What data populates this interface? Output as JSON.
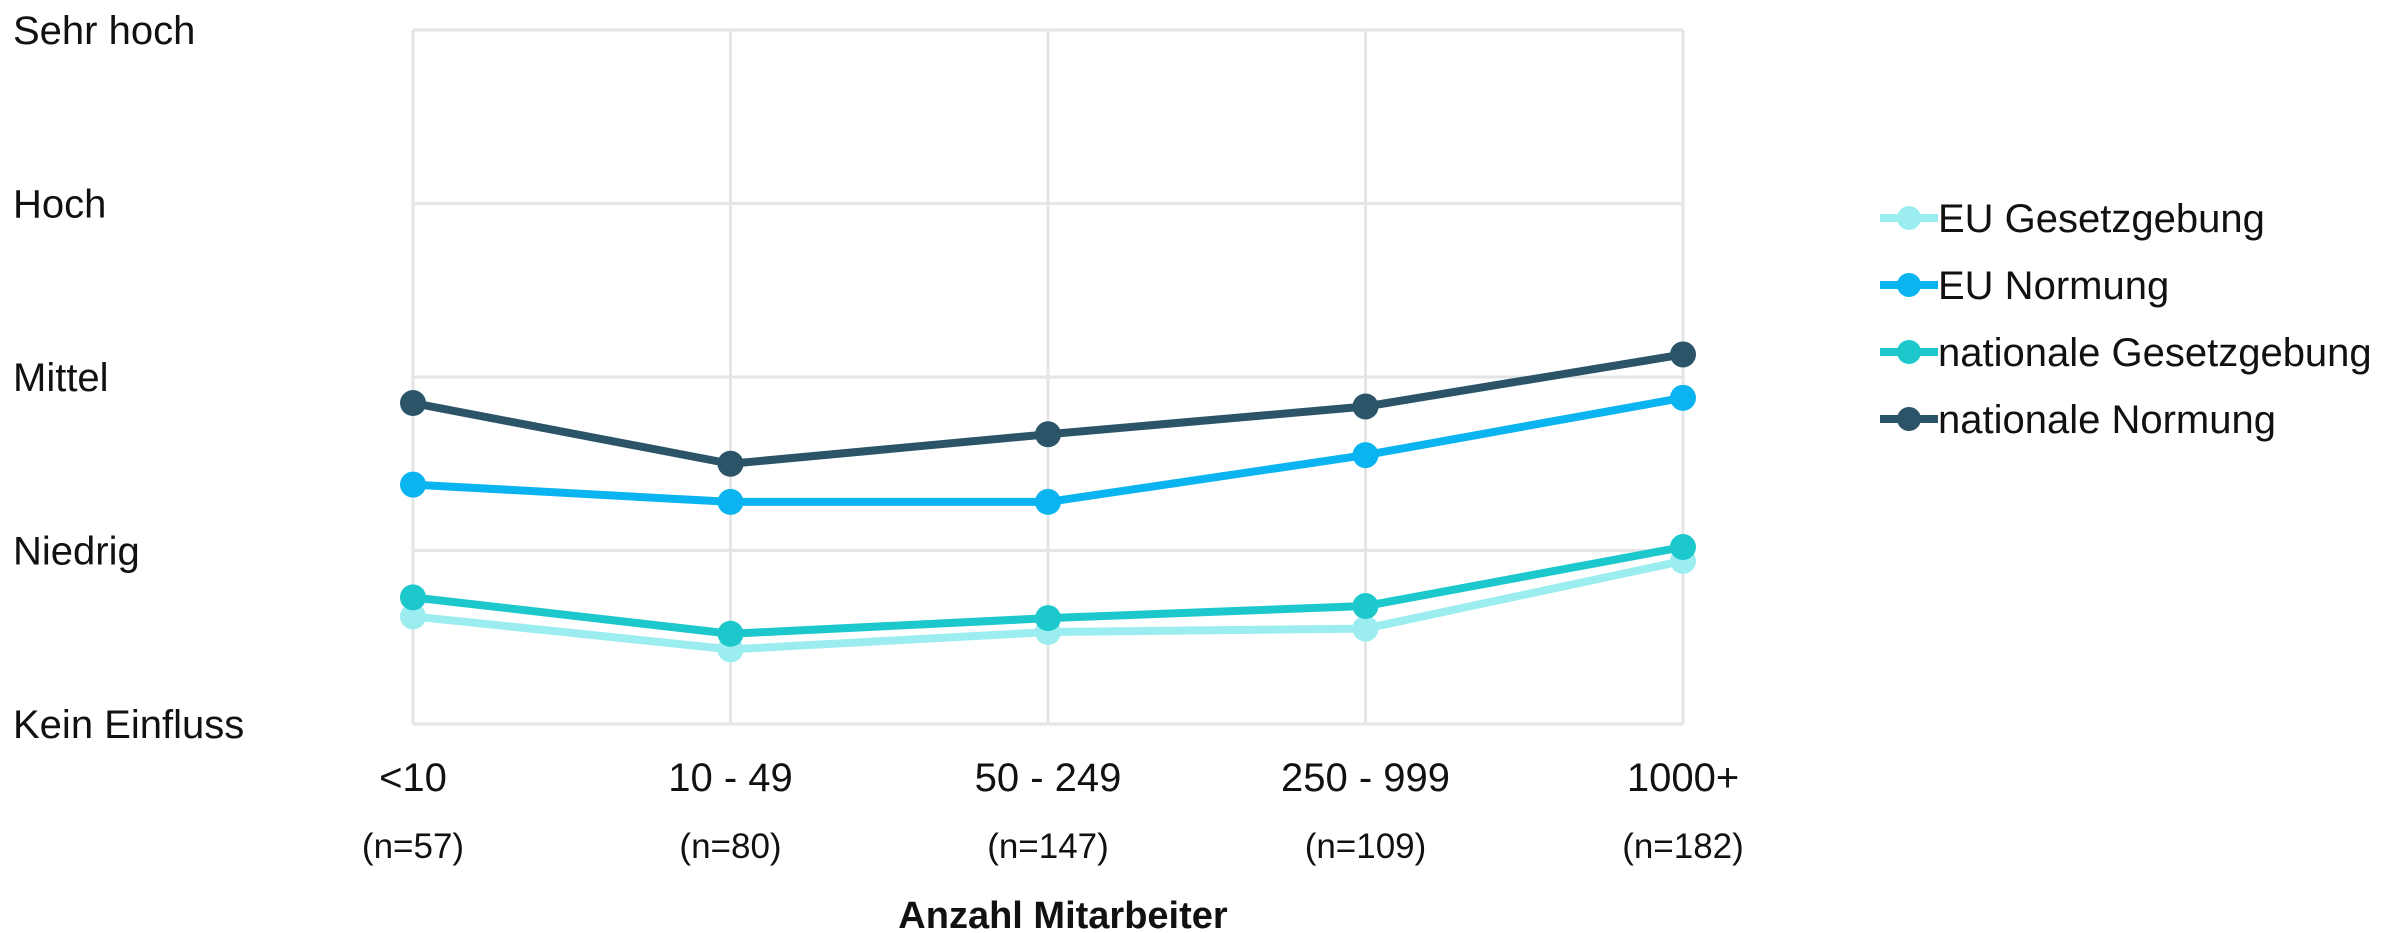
{
  "chart_data": {
    "type": "line",
    "xlabel": "Anzahl Mitarbeiter",
    "categories": [
      "<10",
      "10 - 49",
      "50 - 249",
      "250 - 999",
      "1000+"
    ],
    "category_n": [
      "(n=57)",
      "(n=80)",
      "(n=147)",
      "(n=109)",
      "(n=182)"
    ],
    "y_levels": [
      "Kein Einfluss",
      "Niedrig",
      "Mittel",
      "Hoch",
      "Sehr hoch"
    ],
    "ylim": [
      0,
      4
    ],
    "grid": true,
    "legend_position": "right",
    "series": [
      {
        "name": "EU Gesetzgebung",
        "color": "#9BEDF0",
        "values": [
          0.62,
          0.43,
          0.53,
          0.55,
          0.94
        ]
      },
      {
        "name": "EU Normung",
        "color": "#0AB4F0",
        "values": [
          1.38,
          1.28,
          1.28,
          1.55,
          1.88
        ]
      },
      {
        "name": "nationale Gesetzgebung",
        "color": "#1CC8CC",
        "values": [
          0.73,
          0.52,
          0.61,
          0.68,
          1.02
        ]
      },
      {
        "name": "nationale Normung",
        "color": "#2B5468",
        "values": [
          1.85,
          1.5,
          1.67,
          1.83,
          2.13
        ]
      }
    ]
  }
}
